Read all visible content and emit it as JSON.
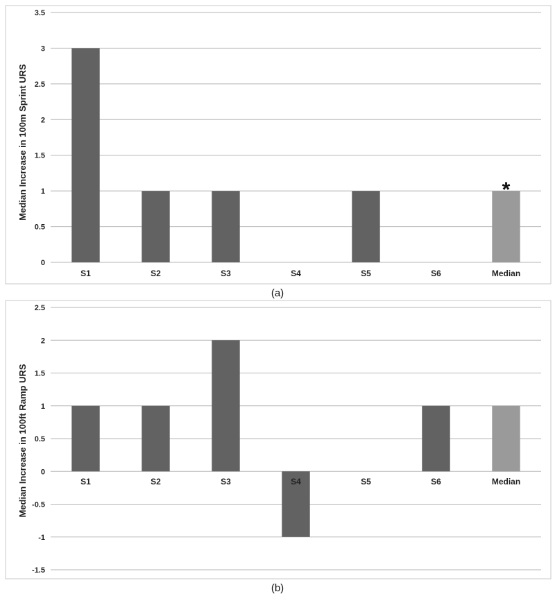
{
  "chart_data": [
    {
      "id": "a",
      "type": "bar",
      "caption": "(a)",
      "ylabel": "Median Increase in 100m Sprint URS",
      "xlabel": "",
      "ylim": [
        0,
        3.5
      ],
      "yticks": [
        "0",
        "0.5",
        "1",
        "1.5",
        "2",
        "2.5",
        "3",
        "3.5"
      ],
      "grid": true,
      "categories": [
        "S1",
        "S2",
        "S3",
        "S4",
        "S5",
        "S6",
        "Median"
      ],
      "values": [
        3,
        1,
        1,
        0,
        1,
        0,
        1
      ],
      "colors": [
        "#626262",
        "#626262",
        "#626262",
        "#626262",
        "#626262",
        "#626262",
        "#9a9a9a"
      ],
      "annotations": [
        {
          "category": "Median",
          "text": "*"
        }
      ]
    },
    {
      "id": "b",
      "type": "bar",
      "caption": "(b)",
      "ylabel": "Median Increase in 100ft Ramp URS",
      "xlabel": "",
      "ylim": [
        -1.5,
        2.5
      ],
      "yticks": [
        "-1.5",
        "-1",
        "-0.5",
        "0",
        "0.5",
        "1",
        "1.5",
        "2",
        "2.5"
      ],
      "grid": true,
      "categories": [
        "S1",
        "S2",
        "S3",
        "S4",
        "S5",
        "S6",
        "Median"
      ],
      "values": [
        1,
        1,
        2,
        -1,
        0,
        1,
        1
      ],
      "colors": [
        "#626262",
        "#626262",
        "#626262",
        "#626262",
        "#626262",
        "#626262",
        "#9a9a9a"
      ],
      "annotations": []
    }
  ]
}
